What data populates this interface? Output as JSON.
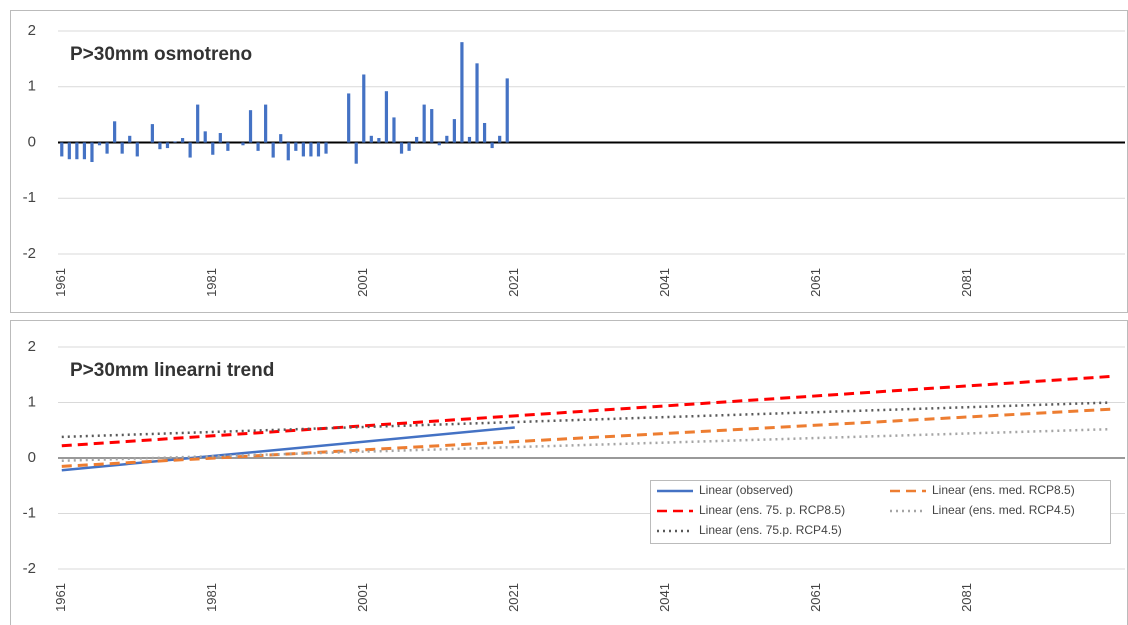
{
  "chart_data": [
    {
      "type": "bar",
      "title": "P>30mm osmotreno",
      "x": [
        1961,
        1962,
        1963,
        1964,
        1965,
        1966,
        1967,
        1968,
        1969,
        1970,
        1971,
        1972,
        1973,
        1974,
        1975,
        1976,
        1977,
        1978,
        1979,
        1980,
        1981,
        1982,
        1983,
        1984,
        1985,
        1986,
        1987,
        1988,
        1989,
        1990,
        1991,
        1992,
        1993,
        1994,
        1995,
        1996,
        1997,
        1998,
        1999,
        2000,
        2001,
        2002,
        2003,
        2004,
        2005,
        2006,
        2007,
        2008,
        2009,
        2010,
        2011,
        2012,
        2013,
        2014,
        2015,
        2016,
        2017,
        2018,
        2019,
        2020
      ],
      "series": [
        {
          "name": "observed",
          "color": "#4472c4",
          "values": [
            -0.25,
            -0.3,
            -0.3,
            -0.3,
            -0.35,
            -0.05,
            -0.2,
            0.38,
            -0.2,
            0.12,
            -0.25,
            0,
            0.33,
            -0.12,
            -0.1,
            0.02,
            0.08,
            -0.27,
            0.68,
            0.2,
            -0.22,
            0.17,
            -0.15,
            0,
            -0.05,
            0.58,
            -0.15,
            0.68,
            -0.27,
            0.15,
            -0.32,
            -0.15,
            -0.25,
            -0.25,
            -0.25,
            -0.2,
            null,
            null,
            0.88,
            -0.38,
            1.22,
            0.12,
            0.08,
            0.92,
            0.45,
            -0.2,
            -0.15,
            0.1,
            0.68,
            0.6,
            -0.05,
            0.12,
            0.42,
            1.8,
            0.1,
            1.42,
            0.35,
            -0.1,
            0.12,
            1.15
          ]
        }
      ],
      "xlim": [
        1960.5,
        2100.5
      ],
      "xticks": [
        1961,
        1981,
        2001,
        2021,
        2041,
        2061,
        2081
      ],
      "ylim": [
        -2,
        2
      ],
      "yticks": [
        2,
        1,
        0,
        -1,
        -2
      ],
      "grid": true
    },
    {
      "type": "line",
      "title": "P>30mm linearni trend",
      "series": [
        {
          "name": "Linear (observed)",
          "color": "#4472c4",
          "dash": "solid",
          "x": [
            1961,
            2021
          ],
          "values": [
            -0.22,
            0.55
          ]
        },
        {
          "name": "Linear (ens. med. RCP8.5)",
          "color": "#ed7d31",
          "dash": "dashed",
          "x": [
            1961,
            2100
          ],
          "values": [
            -0.15,
            0.88
          ]
        },
        {
          "name": "Linear (ens. 75. p. RCP8.5)",
          "color": "#ff0000",
          "dash": "dashed",
          "x": [
            1961,
            2100
          ],
          "values": [
            0.22,
            1.47
          ]
        },
        {
          "name": "Linear (ens. med. RCP4.5)",
          "color": "#a5a5a5",
          "dash": "dotted",
          "x": [
            1961,
            2100
          ],
          "values": [
            -0.05,
            0.52
          ]
        },
        {
          "name": "Linear (ens. 75.p. RCP4.5)",
          "color": "#595959",
          "dash": "dotted",
          "x": [
            1961,
            2100
          ],
          "values": [
            0.38,
            1.0
          ]
        }
      ],
      "xlim": [
        1960.5,
        2100.5
      ],
      "xticks": [
        1961,
        1981,
        2001,
        2021,
        2041,
        2061,
        2081
      ],
      "ylim": [
        -2,
        2
      ],
      "yticks": [
        2,
        1,
        0,
        -1,
        -2
      ],
      "grid": true
    }
  ]
}
